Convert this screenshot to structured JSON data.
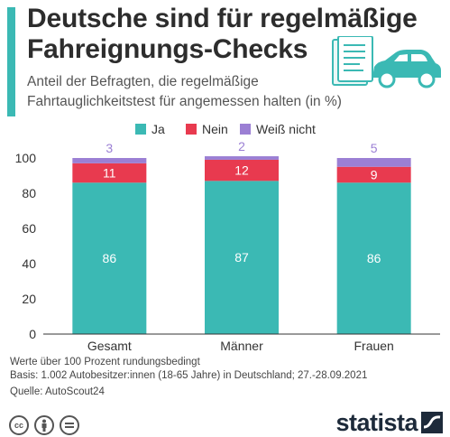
{
  "header": {
    "title_line1": "Deutsche sind für regelmäßige",
    "title_line2": "Fahreignungs-Checks",
    "subtitle_line1": "Anteil der Befragten, die regelmäßige",
    "subtitle_line2": "Fahrtauglichkeitstest für angemessen halten (in %)"
  },
  "legend": [
    {
      "label": "Ja",
      "color": "#3bb9b4"
    },
    {
      "label": "Nein",
      "color": "#e83a4f"
    },
    {
      "label": "Weiß nicht",
      "color": "#9b7fd4"
    }
  ],
  "chart_data": {
    "type": "bar",
    "stacked": true,
    "categories": [
      "Gesamt",
      "Männer",
      "Frauen"
    ],
    "series": [
      {
        "name": "Ja",
        "color": "#3bb9b4",
        "values": [
          86,
          87,
          86
        ]
      },
      {
        "name": "Nein",
        "color": "#e83a4f",
        "values": [
          11,
          12,
          9
        ]
      },
      {
        "name": "Weiß nicht",
        "color": "#9b7fd4",
        "values": [
          3,
          2,
          5
        ]
      }
    ],
    "ylim": [
      0,
      100
    ],
    "yticks": [
      0,
      20,
      40,
      60,
      80,
      100
    ],
    "grid": false,
    "legend_position": "top"
  },
  "footer": {
    "note": "Werte über 100 Prozent rundungsbedingt",
    "basis": "Basis: 1.002 Autobesitzer:innen (18-65 Jahre) in Deutschland; 27.-28.09.2021",
    "source": "Quelle: AutoScout24",
    "brand": "statista"
  }
}
